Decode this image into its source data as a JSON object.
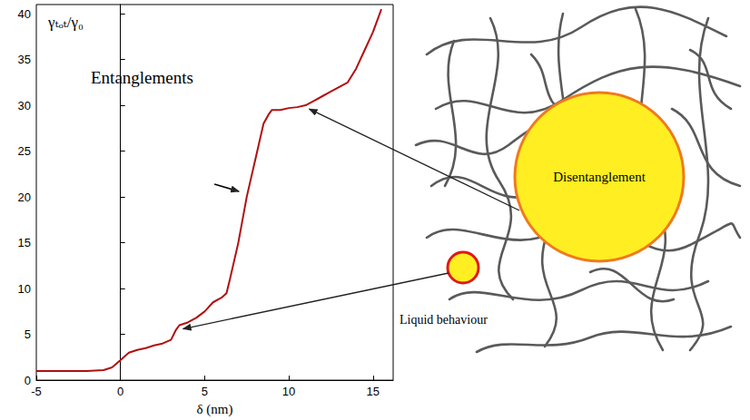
{
  "chart_data": {
    "type": "line",
    "xlabel": "δ (nm)",
    "ylabel": "γₜₒₜ/γ₀",
    "xlim": [
      -5,
      16.2
    ],
    "xticks": [
      -5,
      0,
      5,
      10,
      15
    ],
    "ylim": [
      0,
      41
    ],
    "yticks": [
      0,
      5,
      10,
      15,
      20,
      25,
      30,
      35,
      40
    ],
    "grid": false,
    "color": "#b01010",
    "x": [
      -5,
      -4,
      -3,
      -2,
      -1,
      -0.5,
      0,
      0.5,
      1,
      1.5,
      2,
      2.5,
      3,
      3.3,
      3.5,
      4,
      4.5,
      5,
      5.5,
      6,
      6.3,
      6.5,
      7,
      7.5,
      8,
      8.5,
      8.8,
      9,
      9.5,
      10,
      10.5,
      11,
      11.5,
      12,
      12.5,
      13,
      13.5,
      14,
      14.5,
      15,
      15.5
    ],
    "values": [
      1,
      1,
      1,
      1,
      1.1,
      1.4,
      2.2,
      3,
      3.3,
      3.5,
      3.8,
      4,
      4.4,
      5.5,
      6,
      6.3,
      6.8,
      7.5,
      8.5,
      9,
      9.5,
      11,
      15,
      20,
      24,
      28,
      29,
      29.5,
      29.5,
      29.7,
      29.8,
      30,
      30.5,
      31,
      31.5,
      32,
      32.5,
      34,
      36,
      38,
      40.5
    ],
    "annotations": [
      {
        "text": "Entanglements"
      },
      {
        "arrow_to": [
          7.2,
          20.5
        ]
      }
    ]
  },
  "diagram": {
    "circles": [
      {
        "label": "Disentanglement",
        "points_to": [
          11,
          29.8
        ]
      },
      {
        "label": "Liquid behaviour",
        "points_to": [
          3.5,
          5.8
        ]
      }
    ]
  }
}
